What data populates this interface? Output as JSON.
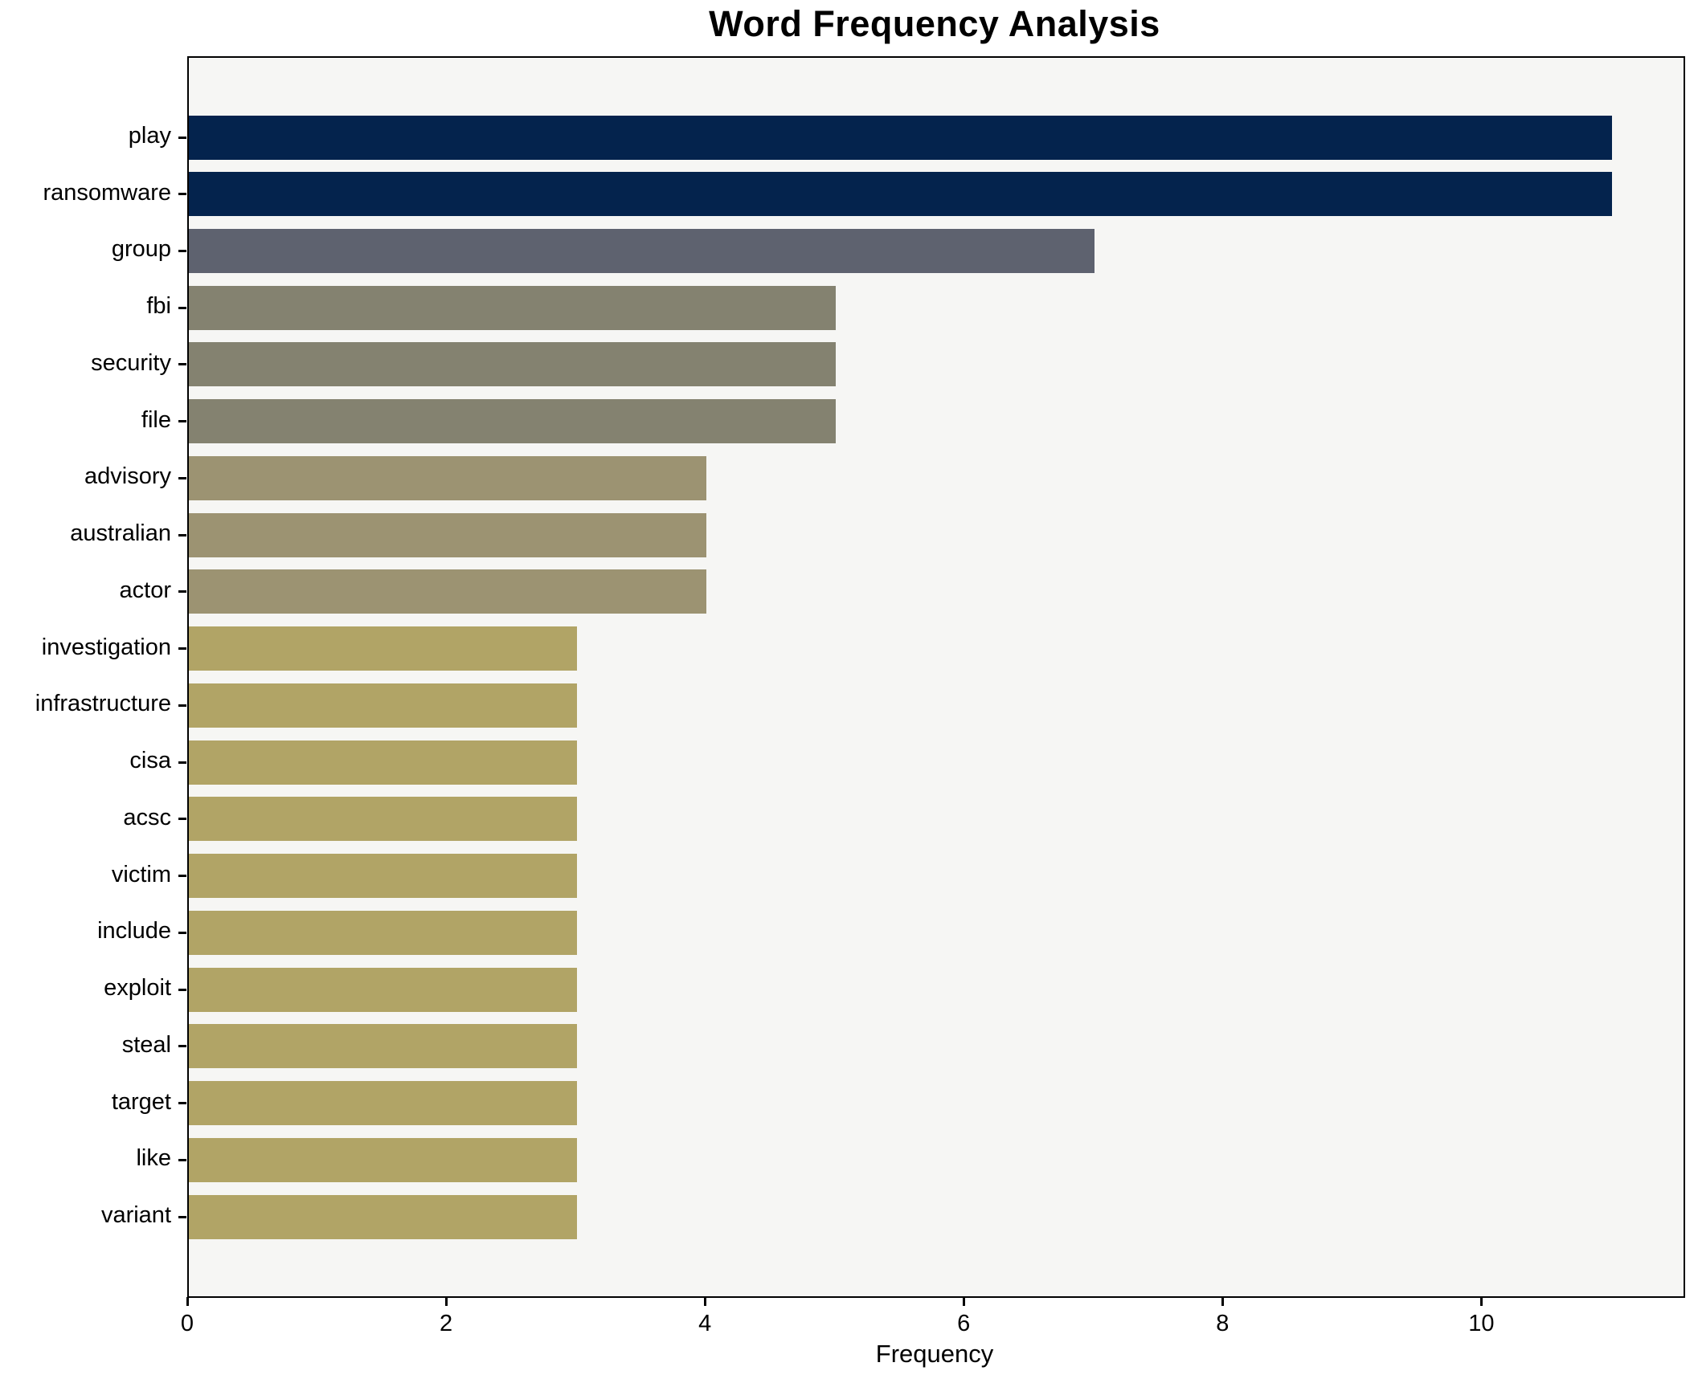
{
  "chart_data": {
    "type": "bar",
    "orientation": "horizontal",
    "title": "Word Frequency Analysis",
    "xlabel": "Frequency",
    "ylabel": "",
    "categories": [
      "play",
      "ransomware",
      "group",
      "fbi",
      "security",
      "file",
      "advisory",
      "australian",
      "actor",
      "investigation",
      "infrastructure",
      "cisa",
      "acsc",
      "victim",
      "include",
      "exploit",
      "steal",
      "target",
      "like",
      "variant"
    ],
    "values": [
      11,
      11,
      7,
      5,
      5,
      5,
      4,
      4,
      4,
      3,
      3,
      3,
      3,
      3,
      3,
      3,
      3,
      3,
      3,
      3
    ],
    "bar_colors": [
      "#04234d",
      "#04234d",
      "#5e626f",
      "#848270",
      "#848270",
      "#848270",
      "#9c9372",
      "#9c9372",
      "#9c9372",
      "#b1a466",
      "#b1a466",
      "#b1a466",
      "#b1a466",
      "#b1a466",
      "#b1a466",
      "#b1a466",
      "#b1a466",
      "#b1a466",
      "#b1a466",
      "#b1a466"
    ],
    "xticks": [
      0,
      2,
      4,
      6,
      8,
      10
    ],
    "xlim": [
      0,
      11.55
    ],
    "grid": false,
    "legend_position": "none",
    "plot_bg": "#f6f6f4",
    "figure_bg": "#ffffff",
    "axis_color": "#000000"
  }
}
